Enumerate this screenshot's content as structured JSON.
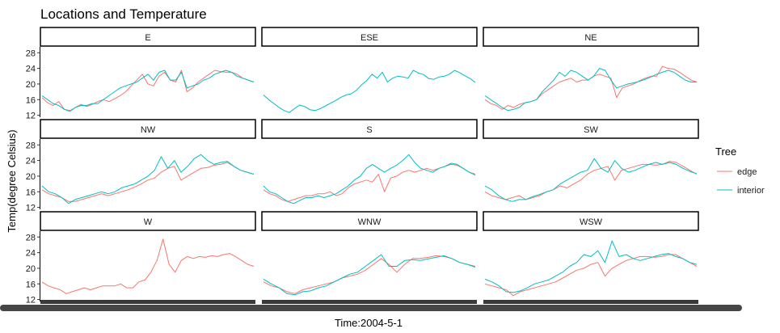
{
  "chart_data": {
    "type": "line",
    "title": "Locations and Temperature",
    "xlabel": "Time:2004-5-1",
    "ylabel": "Temp(degree Celsius)",
    "ylim": [
      11.5,
      29.5
    ],
    "yticks": [
      12,
      16,
      20,
      24,
      28
    ],
    "legend": {
      "title": "Tree",
      "placement": "right",
      "entries": [
        "edge",
        "interior"
      ]
    },
    "colors": {
      "edge": "#F8766D",
      "interior": "#00BFC4"
    },
    "grid": false,
    "panels": [
      {
        "name": "E",
        "series": [
          {
            "name": "edge",
            "values": [
              16.5,
              15.2,
              14.5,
              15.5,
              13.5,
              13.2,
              14,
              14.8,
              14.2,
              14.8,
              15.5,
              16,
              15.5,
              16.2,
              17,
              18,
              19.5,
              21,
              22.5,
              20,
              19.5,
              22,
              23,
              21,
              20.5,
              23.5,
              18,
              19,
              20.5,
              21.5,
              22.5,
              23.5,
              23.2,
              23,
              23,
              22.5,
              21.5,
              21,
              20.5
            ]
          },
          {
            "name": "interior",
            "values": [
              17,
              16,
              15,
              14.5,
              13.5,
              13,
              14,
              14.5,
              14.5,
              15,
              15,
              16,
              17,
              18,
              19,
              19.5,
              20,
              20.5,
              21.5,
              22.5,
              21,
              23,
              23.5,
              21,
              21,
              23,
              19,
              19.5,
              20,
              21,
              21.5,
              22.5,
              23,
              23.5,
              23,
              22,
              21.5,
              21,
              20.5
            ]
          }
        ]
      },
      {
        "name": "ESE",
        "series": [
          {
            "name": "interior",
            "values": [
              17.2,
              16,
              15,
              14,
              13.2,
              12.7,
              13.7,
              14.6,
              14.2,
              13.4,
              13.2,
              13.7,
              14.4,
              15.1,
              15.8,
              16.6,
              17.2,
              17.5,
              18.4,
              19.8,
              20.9,
              22.5,
              21.5,
              23,
              20.5,
              21.5,
              22,
              21.8,
              21.5,
              23.5,
              22.8,
              22.4,
              21.4,
              21.2,
              21.8,
              22,
              22.5,
              23.5,
              22.9,
              22.1,
              21.4,
              20.4
            ]
          }
        ]
      },
      {
        "name": "NE",
        "series": [
          {
            "name": "edge",
            "values": [
              16,
              15,
              14.5,
              13.5,
              14.5,
              14,
              14.8,
              15.2,
              15.5,
              16,
              17.5,
              18.5,
              19.5,
              20.5,
              21,
              21.5,
              20.5,
              21,
              21,
              22,
              22.5,
              22,
              21.5,
              16.5,
              19,
              19.5,
              20,
              20.8,
              21.5,
              22,
              22,
              24.5,
              24,
              23.8,
              23,
              22,
              21,
              20.5
            ]
          },
          {
            "name": "interior",
            "values": [
              17,
              16,
              15,
              14,
              13.2,
              13.5,
              14,
              15.2,
              15.5,
              16,
              18,
              19.5,
              21,
              23,
              22,
              23.5,
              23,
              22,
              21,
              22,
              24,
              23.5,
              21,
              19,
              19.5,
              20,
              20.3,
              20.7,
              21.2,
              21.8,
              22.5,
              23,
              23.5,
              23,
              22,
              21,
              20.5,
              20.5
            ]
          }
        ]
      },
      {
        "name": "NW",
        "series": [
          {
            "name": "edge",
            "values": [
              16.5,
              15.5,
              15,
              14.5,
              13.5,
              13.5,
              14,
              14.5,
              15,
              15.5,
              15,
              15.5,
              16,
              16.5,
              17.2,
              18,
              19,
              19.5,
              21,
              22,
              22.5,
              19,
              20,
              21,
              22,
              22.2,
              22.8,
              23,
              23.5,
              22.5,
              21.5,
              21,
              20.5
            ]
          },
          {
            "name": "interior",
            "values": [
              17.5,
              16,
              15.5,
              14.5,
              13,
              14,
              14.5,
              15,
              15.5,
              16,
              15.5,
              16,
              17,
              17.5,
              18,
              19,
              20,
              21.5,
              25,
              22,
              24,
              21,
              22.5,
              24.5,
              25.5,
              24,
              23,
              23.5,
              23.8,
              22.5,
              21.5,
              21,
              20.5
            ]
          }
        ]
      },
      {
        "name": "S",
        "series": [
          {
            "name": "edge",
            "values": [
              16.5,
              15.5,
              15,
              14,
              13.5,
              14,
              14.5,
              15,
              15,
              15.5,
              15.5,
              16,
              15,
              15.5,
              17,
              18,
              18.5,
              19,
              18.5,
              20.5,
              16,
              19.5,
              20,
              21,
              21.5,
              21,
              21.5,
              22,
              21.5,
              22,
              22.5,
              23,
              22.8,
              22,
              21,
              20.5
            ]
          },
          {
            "name": "interior",
            "values": [
              17.5,
              16,
              15.5,
              14.5,
              13.5,
              13,
              13.8,
              14.5,
              14.5,
              15,
              14.5,
              15,
              15.5,
              16.5,
              17.5,
              19,
              20,
              22,
              23,
              22,
              21,
              22,
              22.8,
              24,
              25.5,
              23.5,
              22,
              21.5,
              21,
              22,
              22.5,
              23.3,
              23,
              22,
              21,
              20.3
            ]
          }
        ]
      },
      {
        "name": "SW",
        "series": [
          {
            "name": "edge",
            "values": [
              16,
              15,
              14.5,
              14,
              14.5,
              15,
              14,
              14.5,
              15,
              16,
              16.5,
              17.5,
              17,
              18,
              19,
              20.5,
              21.5,
              22,
              22.5,
              19,
              21.5,
              22,
              22.5,
              23,
              23,
              22.8,
              23,
              23.8,
              23.5,
              22.5,
              21.5,
              20.5
            ]
          },
          {
            "name": "interior",
            "values": [
              17.5,
              16.5,
              15,
              14,
              13.5,
              14,
              14,
              14.8,
              15.3,
              16,
              16.5,
              18,
              19,
              20,
              21,
              21.5,
              24.5,
              22,
              21,
              24,
              22,
              21,
              21.5,
              22.3,
              23,
              23.5,
              23,
              23.5,
              23,
              22,
              21.2,
              20.6
            ]
          }
        ]
      },
      {
        "name": "W",
        "series": [
          {
            "name": "edge",
            "values": [
              16.5,
              15.5,
              15,
              14.5,
              13.5,
              14,
              14.5,
              15,
              14.5,
              15,
              15.5,
              15.5,
              15.5,
              16,
              15,
              15,
              16.5,
              17,
              19,
              22,
              27.5,
              21,
              19,
              22,
              23,
              22.5,
              23,
              22.8,
              23.2,
              23,
              23.5,
              23.8,
              23,
              22,
              21,
              20.5
            ]
          }
        ]
      },
      {
        "name": "WNW",
        "series": [
          {
            "name": "edge",
            "values": [
              16.5,
              15.5,
              15,
              14,
              13.5,
              14.5,
              15,
              15.5,
              16,
              16.5,
              17.5,
              18,
              18.5,
              19.5,
              21,
              22.5,
              21,
              19,
              21,
              22.5,
              22.5,
              22.8,
              23.2,
              23,
              22.5,
              21.5,
              21,
              20.5
            ]
          },
          {
            "name": "interior",
            "values": [
              17.2,
              16,
              15,
              13.5,
              13.2,
              14,
              14.2,
              15,
              15.5,
              16.5,
              17.5,
              18.5,
              19,
              20.5,
              22,
              23.5,
              20.5,
              20.5,
              22,
              22.2,
              22,
              22.4,
              22.8,
              23.2,
              22.5,
              21.5,
              21,
              20.3
            ]
          }
        ]
      },
      {
        "name": "WSW",
        "series": [
          {
            "name": "edge",
            "values": [
              16,
              15.5,
              15,
              14.5,
              13,
              14,
              14.5,
              15,
              15.5,
              16,
              16.5,
              17.5,
              18.5,
              19.5,
              20,
              21,
              21.5,
              18,
              20,
              21,
              22,
              22.5,
              23,
              23,
              22.8,
              23,
              23.5,
              23.5,
              22.5,
              21.5,
              20.5
            ]
          },
          {
            "name": "interior",
            "values": [
              17.2,
              16.5,
              15.5,
              14,
              13.8,
              14.2,
              15,
              16,
              16.5,
              17,
              18,
              19,
              20.5,
              21.5,
              23.5,
              23,
              24.5,
              21.5,
              27,
              23,
              23.5,
              22.5,
              22,
              22.5,
              23,
              23.5,
              23.8,
              23,
              22.5,
              21.5,
              21
            ]
          }
        ]
      }
    ]
  }
}
